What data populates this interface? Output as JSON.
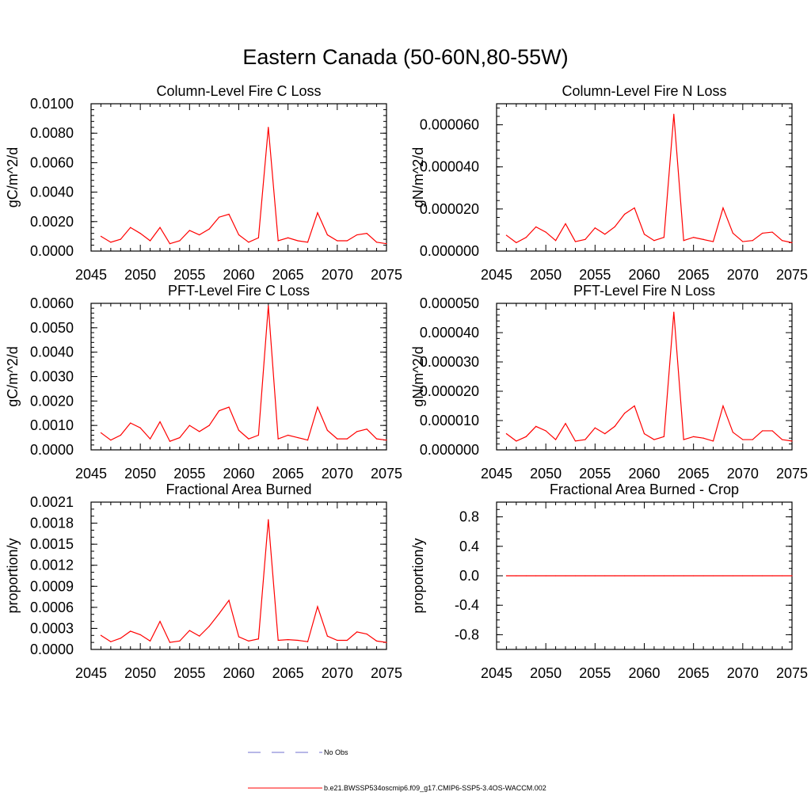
{
  "title": "Eastern Canada (50-60N,80-55W)",
  "colors": {
    "model": "#ff0000",
    "obs": "#6f6fcf",
    "axis": "#000000"
  },
  "legend": {
    "obs_label": "No Obs",
    "model_label": "b.e21.BWSSP534oscmip6.f09_g17.CMIP6-SSP5-3.4OS-WACCM.002"
  },
  "chart_data": [
    {
      "type": "line",
      "title": "Column-Level Fire C Loss",
      "ylabel": "gC/m^2/d",
      "xlabel": "",
      "xlim": [
        2045,
        2075
      ],
      "ylim": [
        0,
        0.01
      ],
      "xticks": [
        "2045",
        "2050",
        "2055",
        "2060",
        "2065",
        "2070",
        "2075"
      ],
      "yticks": [
        "0.0000",
        "0.0020",
        "0.0040",
        "0.0060",
        "0.0080",
        "0.0100"
      ],
      "yminor_step": 0.0004,
      "series": [
        {
          "name": "b.e21.BWSSP534oscmip6.f09_g17.CMIP6-SSP5-3.4OS-WACCM.002",
          "x": [
            2046,
            2047,
            2048,
            2049,
            2050,
            2051,
            2052,
            2053,
            2054,
            2055,
            2056,
            2057,
            2058,
            2059,
            2060,
            2061,
            2062,
            2063,
            2064,
            2065,
            2066,
            2067,
            2068,
            2069,
            2070,
            2071,
            2072,
            2073,
            2074,
            2075
          ],
          "values": [
            0.001,
            0.0006,
            0.0008,
            0.0016,
            0.0012,
            0.0007,
            0.0016,
            0.0005,
            0.0007,
            0.0014,
            0.0011,
            0.0015,
            0.0023,
            0.0025,
            0.0011,
            0.0006,
            0.0009,
            0.0084,
            0.0007,
            0.0009,
            0.0007,
            0.0006,
            0.0026,
            0.0011,
            0.0007,
            0.0007,
            0.0011,
            0.0012,
            0.0006,
            0.0005
          ]
        }
      ]
    },
    {
      "type": "line",
      "title": "Column-Level Fire N Loss",
      "ylabel": "gN/m^2/d",
      "xlabel": "",
      "xlim": [
        2045,
        2075
      ],
      "ylim": [
        0,
        7e-05
      ],
      "xticks": [
        "2045",
        "2050",
        "2055",
        "2060",
        "2065",
        "2070",
        "2075"
      ],
      "yticks": [
        "0.000000",
        "0.000020",
        "0.000040",
        "0.000060"
      ],
      "yminor_step": 4e-06,
      "series": [
        {
          "name": "b.e21.BWSSP534oscmip6.f09_g17.CMIP6-SSP5-3.4OS-WACCM.002",
          "x": [
            2046,
            2047,
            2048,
            2049,
            2050,
            2051,
            2052,
            2053,
            2054,
            2055,
            2056,
            2057,
            2058,
            2059,
            2060,
            2061,
            2062,
            2063,
            2064,
            2065,
            2066,
            2067,
            2068,
            2069,
            2070,
            2071,
            2072,
            2073,
            2074,
            2075
          ],
          "values": [
            7.5e-06,
            4e-06,
            6.5e-06,
            1.15e-05,
            9e-06,
            5e-06,
            1.3e-05,
            4.5e-06,
            5.5e-06,
            1.1e-05,
            8e-06,
            1.15e-05,
            1.75e-05,
            2.05e-05,
            8e-06,
            5e-06,
            6.5e-06,
            6.5e-05,
            5e-06,
            6.5e-06,
            5.5e-06,
            4.5e-06,
            2.05e-05,
            8.5e-06,
            4.5e-06,
            5e-06,
            8.5e-06,
            9e-06,
            5e-06,
            4e-06
          ]
        }
      ]
    },
    {
      "type": "line",
      "title": "PFT-Level Fire C Loss",
      "ylabel": "gC/m^2/d",
      "xlabel": "",
      "xlim": [
        2045,
        2075
      ],
      "ylim": [
        0,
        0.006
      ],
      "xticks": [
        "2045",
        "2050",
        "2055",
        "2060",
        "2065",
        "2070",
        "2075"
      ],
      "yticks": [
        "0.0000",
        "0.0010",
        "0.0020",
        "0.0030",
        "0.0040",
        "0.0050",
        "0.0060"
      ],
      "yminor_step": 0.0002,
      "series": [
        {
          "name": "b.e21.BWSSP534oscmip6.f09_g17.CMIP6-SSP5-3.4OS-WACCM.002",
          "x": [
            2046,
            2047,
            2048,
            2049,
            2050,
            2051,
            2052,
            2053,
            2054,
            2055,
            2056,
            2057,
            2058,
            2059,
            2060,
            2061,
            2062,
            2063,
            2064,
            2065,
            2066,
            2067,
            2068,
            2069,
            2070,
            2071,
            2072,
            2073,
            2074,
            2075
          ],
          "values": [
            0.0007,
            0.0004,
            0.0006,
            0.0011,
            0.0009,
            0.00045,
            0.00115,
            0.00035,
            0.0005,
            0.001,
            0.00075,
            0.001,
            0.0016,
            0.00175,
            0.0008,
            0.00045,
            0.0006,
            0.0059,
            0.00045,
            0.0006,
            0.0005,
            0.0004,
            0.00175,
            0.0008,
            0.00045,
            0.00045,
            0.00075,
            0.00085,
            0.00045,
            0.0004
          ]
        }
      ]
    },
    {
      "type": "line",
      "title": "PFT-Level Fire N Loss",
      "ylabel": "gN/m^2/d",
      "xlabel": "",
      "xlim": [
        2045,
        2075
      ],
      "ylim": [
        0,
        5e-05
      ],
      "xticks": [
        "2045",
        "2050",
        "2055",
        "2060",
        "2065",
        "2070",
        "2075"
      ],
      "yticks": [
        "0.000000",
        "0.000010",
        "0.000020",
        "0.000030",
        "0.000040",
        "0.000050"
      ],
      "yminor_step": 2e-06,
      "series": [
        {
          "name": "b.e21.BWSSP534oscmip6.f09_g17.CMIP6-SSP5-3.4OS-WACCM.002",
          "x": [
            2046,
            2047,
            2048,
            2049,
            2050,
            2051,
            2052,
            2053,
            2054,
            2055,
            2056,
            2057,
            2058,
            2059,
            2060,
            2061,
            2062,
            2063,
            2064,
            2065,
            2066,
            2067,
            2068,
            2069,
            2070,
            2071,
            2072,
            2073,
            2074,
            2075
          ],
          "values": [
            5.5e-06,
            3e-06,
            4.5e-06,
            8e-06,
            6.5e-06,
            3.5e-06,
            9e-06,
            3e-06,
            3.5e-06,
            7.5e-06,
            5.5e-06,
            8e-06,
            1.25e-05,
            1.5e-05,
            5.5e-06,
            3.5e-06,
            4.5e-06,
            4.7e-05,
            3.5e-06,
            4.5e-06,
            4e-06,
            3e-06,
            1.5e-05,
            6e-06,
            3.5e-06,
            3.5e-06,
            6.5e-06,
            6.5e-06,
            3.5e-06,
            3e-06
          ]
        }
      ]
    },
    {
      "type": "line",
      "title": "Fractional Area Burned",
      "ylabel": "proportion/y",
      "xlabel": "",
      "xlim": [
        2045,
        2075
      ],
      "ylim": [
        0,
        0.0021
      ],
      "xticks": [
        "2045",
        "2050",
        "2055",
        "2060",
        "2065",
        "2070",
        "2075"
      ],
      "yticks": [
        "0.0000",
        "0.0003",
        "0.0006",
        "0.0009",
        "0.0012",
        "0.0015",
        "0.0018",
        "0.0021"
      ],
      "yminor_step": 0.0001,
      "series": [
        {
          "name": "b.e21.BWSSP534oscmip6.f09_g17.CMIP6-SSP5-3.4OS-WACCM.002",
          "x": [
            2046,
            2047,
            2048,
            2049,
            2050,
            2051,
            2052,
            2053,
            2054,
            2055,
            2056,
            2057,
            2058,
            2059,
            2060,
            2061,
            2062,
            2063,
            2064,
            2065,
            2066,
            2067,
            2068,
            2069,
            2070,
            2071,
            2072,
            2073,
            2074,
            2075
          ],
          "values": [
            0.0002,
            0.00011,
            0.00016,
            0.00026,
            0.00021,
            0.00012,
            0.0004,
            0.0001,
            0.00012,
            0.00027,
            0.00019,
            0.00033,
            0.00051,
            0.0007,
            0.00018,
            0.00012,
            0.00015,
            0.00185,
            0.00013,
            0.00014,
            0.00013,
            0.00011,
            0.00061,
            0.00019,
            0.00013,
            0.00013,
            0.00025,
            0.00022,
            0.00012,
            0.0001
          ]
        }
      ]
    },
    {
      "type": "line",
      "title": "Fractional Area Burned - Crop",
      "ylabel": "proportion/y",
      "xlabel": "",
      "xlim": [
        2045,
        2075
      ],
      "ylim": [
        -1,
        1
      ],
      "xticks": [
        "2045",
        "2050",
        "2055",
        "2060",
        "2065",
        "2070",
        "2075"
      ],
      "yticks": [
        "-0.8",
        "-0.4",
        "0.0",
        "0.4",
        "0.8"
      ],
      "yminor_step": 0.1,
      "series": [
        {
          "name": "b.e21.BWSSP534oscmip6.f09_g17.CMIP6-SSP5-3.4OS-WACCM.002",
          "x": [
            2046,
            2047,
            2048,
            2049,
            2050,
            2051,
            2052,
            2053,
            2054,
            2055,
            2056,
            2057,
            2058,
            2059,
            2060,
            2061,
            2062,
            2063,
            2064,
            2065,
            2066,
            2067,
            2068,
            2069,
            2070,
            2071,
            2072,
            2073,
            2074,
            2075
          ],
          "values": [
            0,
            0,
            0,
            0,
            0,
            0,
            0,
            0,
            0,
            0,
            0,
            0,
            0,
            0,
            0,
            0,
            0,
            0,
            0,
            0,
            0,
            0,
            0,
            0,
            0,
            0,
            0,
            0,
            0,
            0
          ]
        }
      ]
    }
  ]
}
